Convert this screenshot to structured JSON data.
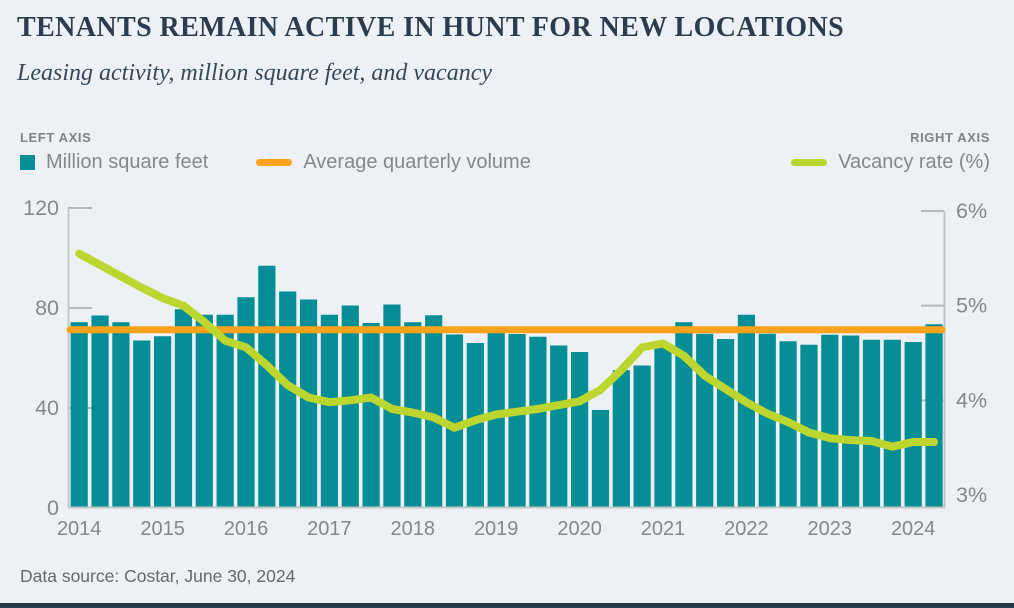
{
  "header": {
    "title": "TENANTS REMAIN ACTIVE IN HUNT FOR NEW LOCATIONS",
    "subtitle": "Leasing activity, million square feet, and vacancy"
  },
  "legend": {
    "left_axis_caption": "LEFT AXIS",
    "right_axis_caption": "RIGHT AXIS",
    "items": [
      {
        "label": "Million square feet",
        "swatch": "square",
        "color": "#058e96"
      },
      {
        "label": "Average quarterly volume",
        "swatch": "line",
        "color": "#f9a21c"
      },
      {
        "label": "Vacancy rate (%)",
        "swatch": "line",
        "color": "#bdd62f"
      }
    ]
  },
  "palette": {
    "bar_teal": "#058e96",
    "avg_orange": "#f9a21c",
    "vacancy_green": "#bdd62f",
    "axis_line": "#c3c7cc",
    "tick_mark": "#b5b9be",
    "axis_text": "#85878b",
    "title_navy": "#2b3c4e",
    "background": "#edf0f4",
    "footer_navy": "#24384a"
  },
  "footer": {
    "source": "Data source: Costar, June 30, 2024"
  },
  "chart_data": {
    "type": "bar",
    "subtype": "combo-bar-and-lines",
    "quarters": [
      "2014 Q1",
      "2014 Q2",
      "2014 Q3",
      "2014 Q4",
      "2015 Q1",
      "2015 Q2",
      "2015 Q3",
      "2015 Q4",
      "2016 Q1",
      "2016 Q2",
      "2016 Q3",
      "2016 Q4",
      "2017 Q1",
      "2017 Q2",
      "2017 Q3",
      "2017 Q4",
      "2018 Q1",
      "2018 Q2",
      "2018 Q3",
      "2018 Q4",
      "2019 Q1",
      "2019 Q2",
      "2019 Q3",
      "2019 Q4",
      "2020 Q1",
      "2020 Q2",
      "2020 Q3",
      "2020 Q4",
      "2021 Q1",
      "2021 Q2",
      "2021 Q3",
      "2021 Q4",
      "2022 Q1",
      "2022 Q2",
      "2022 Q3",
      "2022 Q4",
      "2023 Q1",
      "2023 Q2",
      "2023 Q3",
      "2023 Q4",
      "2024 Q1",
      "2024 Q2"
    ],
    "series": [
      {
        "name": "Million square feet",
        "type": "bar",
        "axis": "left",
        "values": [
          74.3,
          77.0,
          74.3,
          67.0,
          68.7,
          79.5,
          77.3,
          77.3,
          84.3,
          96.9,
          86.6,
          83.4,
          77.3,
          81.0,
          74.0,
          81.4,
          74.3,
          77.1,
          69.4,
          66.0,
          70.0,
          69.6,
          68.5,
          65.0,
          62.4,
          39.2,
          55.1,
          57.0,
          65.5,
          74.3,
          69.7,
          67.6,
          77.3,
          69.7,
          66.7,
          65.3,
          69.3,
          69.0,
          67.3,
          67.3,
          66.4,
          73.5
        ]
      },
      {
        "name": "Average quarterly volume",
        "type": "line",
        "axis": "left",
        "constant_value": 71.3
      },
      {
        "name": "Vacancy rate (%)",
        "type": "line",
        "axis": "right",
        "values": [
          5.55,
          5.43,
          5.31,
          5.19,
          5.08,
          5.0,
          4.83,
          4.63,
          4.56,
          4.37,
          4.16,
          4.03,
          3.98,
          4.0,
          4.03,
          3.91,
          3.87,
          3.82,
          3.71,
          3.79,
          3.85,
          3.88,
          3.91,
          3.95,
          3.99,
          4.11,
          4.32,
          4.56,
          4.6,
          4.47,
          4.26,
          4.12,
          3.98,
          3.86,
          3.77,
          3.66,
          3.6,
          3.58,
          3.57,
          3.51,
          3.56,
          3.56
        ]
      }
    ],
    "left_axis": {
      "label": "Million square feet",
      "ticks": [
        0,
        40,
        80,
        120
      ],
      "range": [
        0,
        120
      ]
    },
    "right_axis": {
      "label": "Vacancy rate (%)",
      "ticks": [
        "3%",
        "4%",
        "5%",
        "6%"
      ],
      "range": [
        3,
        6
      ]
    },
    "x_axis": {
      "tick_labels": [
        "2014",
        "2015",
        "2016",
        "2017",
        "2018",
        "2019",
        "2020",
        "2021",
        "2022",
        "2023",
        "2024"
      ]
    },
    "grid": "off",
    "legend_position": "top"
  }
}
